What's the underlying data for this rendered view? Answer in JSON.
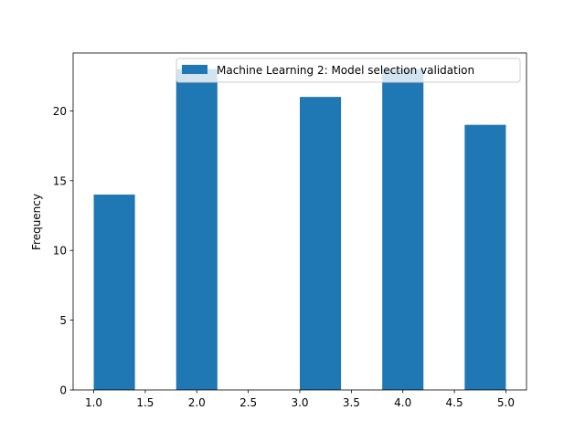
{
  "chart_data": {
    "type": "bar",
    "title": "",
    "xlabel": "",
    "ylabel": "Frequency",
    "xlim": [
      0.8,
      5.2
    ],
    "ylim": [
      0,
      24.15
    ],
    "xticks": [
      "1.0",
      "1.5",
      "2.0",
      "2.5",
      "3.0",
      "3.5",
      "4.0",
      "4.5",
      "5.0"
    ],
    "yticks": [
      "0",
      "5",
      "10",
      "15",
      "20"
    ],
    "grid": false,
    "legend": {
      "position": "top-right",
      "entries": [
        "Machine Learning 2: Model selection validation"
      ]
    },
    "series": [
      {
        "name": "Machine Learning 2: Model selection validation",
        "color": "#1f77b4",
        "bins": [
          {
            "x0": 1.0,
            "x1": 1.4,
            "count": 14
          },
          {
            "x0": 1.4,
            "x1": 1.8,
            "count": 0
          },
          {
            "x0": 1.8,
            "x1": 2.2,
            "count": 23
          },
          {
            "x0": 2.2,
            "x1": 2.6,
            "count": 0
          },
          {
            "x0": 2.6,
            "x1": 3.0,
            "count": 0
          },
          {
            "x0": 3.0,
            "x1": 3.4,
            "count": 21
          },
          {
            "x0": 3.4,
            "x1": 3.8,
            "count": 0
          },
          {
            "x0": 3.8,
            "x1": 4.2,
            "count": 23
          },
          {
            "x0": 4.2,
            "x1": 4.6,
            "count": 0
          },
          {
            "x0": 4.6,
            "x1": 5.0,
            "count": 19
          }
        ]
      }
    ]
  }
}
